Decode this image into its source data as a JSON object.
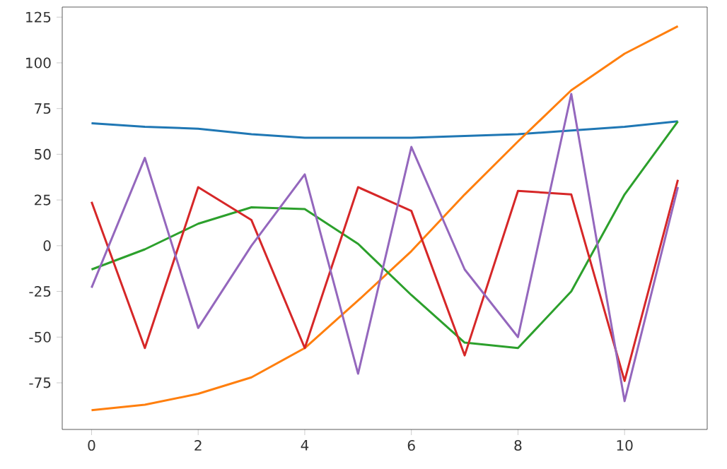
{
  "chart_data": {
    "type": "line",
    "x": [
      0,
      1,
      2,
      3,
      4,
      5,
      6,
      7,
      8,
      9,
      10,
      11
    ],
    "xlim": [
      -0.55,
      11.55
    ],
    "ylim": [
      -100.5,
      130.5
    ],
    "xticks": [
      0,
      2,
      4,
      6,
      8,
      10
    ],
    "yticks": [
      -75,
      -50,
      -25,
      0,
      25,
      50,
      75,
      100,
      125
    ],
    "grid": false,
    "marker": "none",
    "line_style": "solid",
    "series": [
      {
        "color": "#1f77b4",
        "values": [
          67,
          65,
          64,
          61,
          59,
          59,
          59,
          60,
          61,
          63,
          65,
          68
        ]
      },
      {
        "color": "#ff7f0e",
        "values": [
          -90,
          -87,
          -81,
          -72,
          -56,
          -30,
          -3,
          28,
          57,
          85,
          105,
          120
        ]
      },
      {
        "color": "#2ca02c",
        "values": [
          -13,
          -2,
          12,
          21,
          20,
          1,
          -27,
          -53,
          -56,
          -25,
          28,
          68
        ]
      },
      {
        "color": "#d62728",
        "values": [
          24,
          -56,
          32,
          14,
          -56,
          32,
          19,
          -60,
          30,
          28,
          -74,
          36
        ]
      },
      {
        "color": "#9467bd",
        "values": [
          -23,
          48,
          -45,
          0,
          39,
          -70,
          54,
          -13,
          -50,
          83,
          -85,
          32
        ]
      }
    ]
  }
}
